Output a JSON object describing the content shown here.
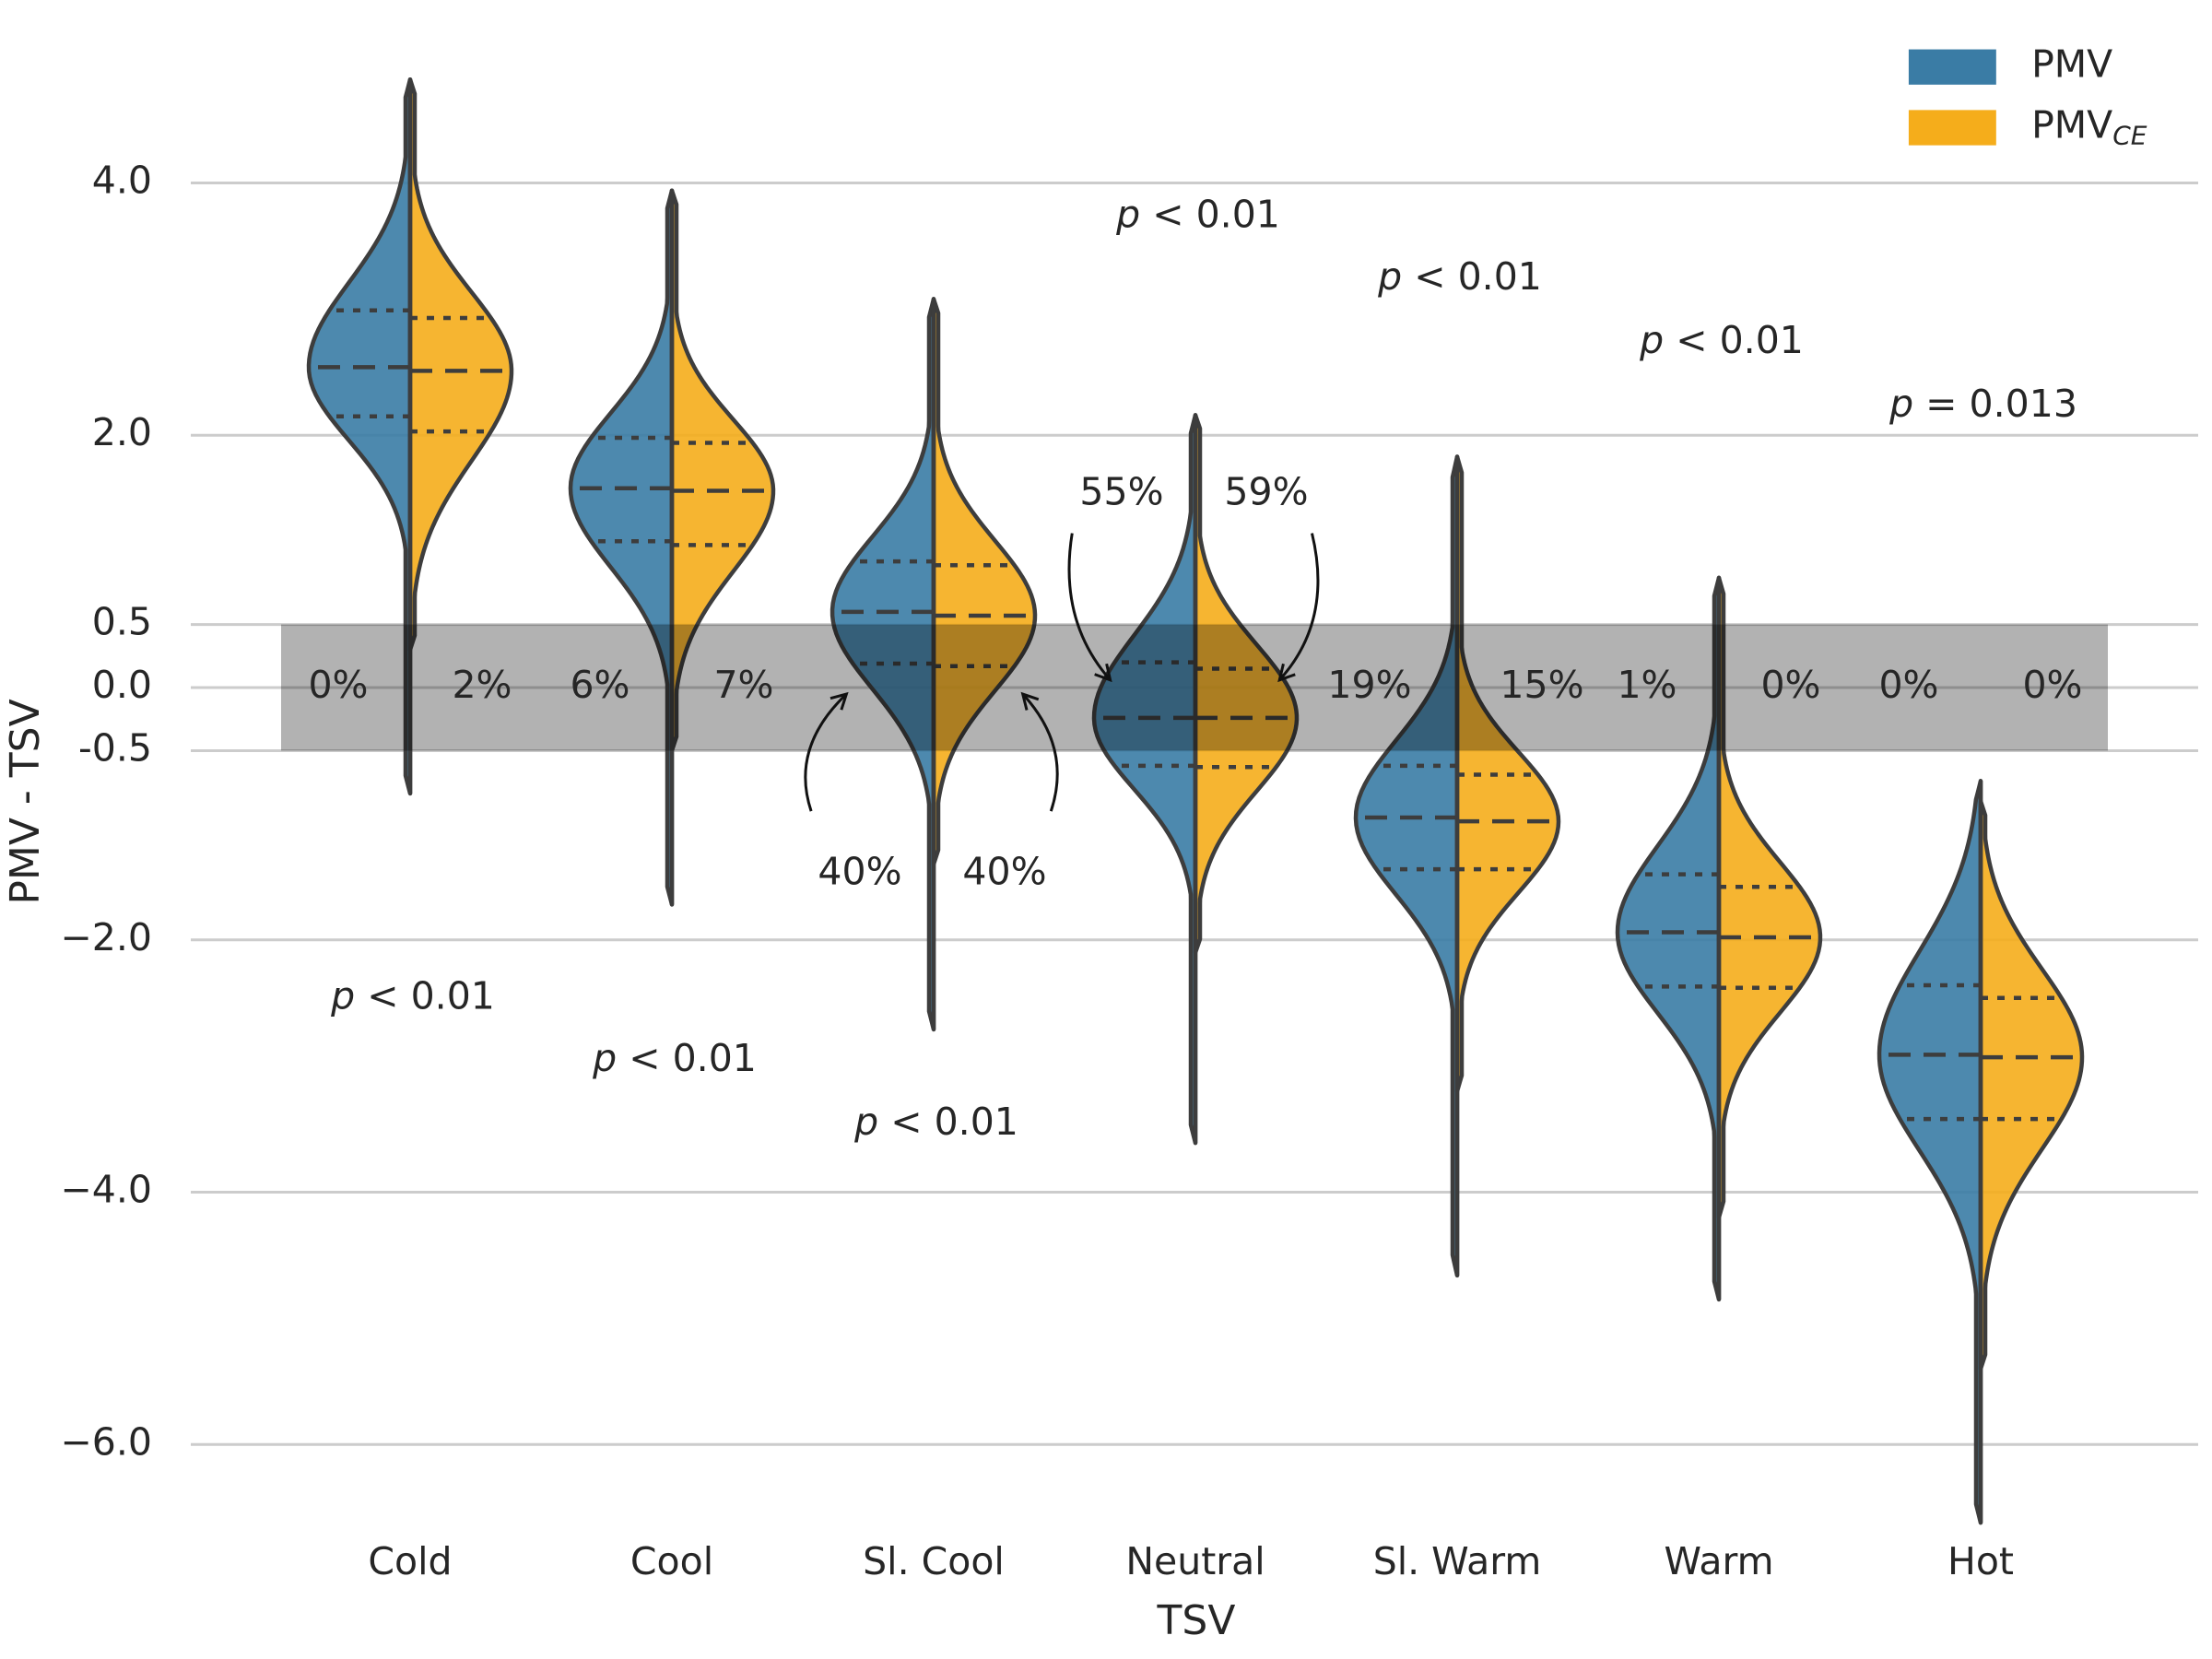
{
  "chart_data": {
    "type": "split-violin",
    "x_label": "TSV",
    "y_label": "PMV - TSV",
    "categories": [
      "Cold",
      "Cool",
      "Sl. Cool",
      "Neutral",
      "Sl. Warm",
      "Warm",
      "Hot"
    ],
    "ylim": [
      -7.7,
      5.45
    ],
    "yticks": [
      {
        "value": 4,
        "label": "4.0"
      },
      {
        "value": 2,
        "label": "2.0"
      },
      {
        "value": 0.5,
        "label": "0.5"
      },
      {
        "value": 0,
        "label": "0.0"
      },
      {
        "value": -0.5,
        "label": "-0.5"
      },
      {
        "value": -2,
        "label": "−2.0"
      },
      {
        "value": -4,
        "label": "−4.0"
      },
      {
        "value": -6,
        "label": "−6.0"
      }
    ],
    "grid": true,
    "band": [
      -0.5,
      0.5
    ],
    "legend": "upper right",
    "series": [
      {
        "name": "PMV",
        "color": "#3a7ca5",
        "max": [
          4.82,
          3.94,
          3.08,
          2.16,
          1.83,
          0.87,
          -0.74
        ],
        "q3": [
          2.99,
          1.98,
          1.0,
          0.2,
          -0.62,
          -1.48,
          -2.36
        ],
        "median": [
          2.54,
          1.58,
          0.6,
          -0.24,
          -1.03,
          -1.94,
          -2.91
        ],
        "q1": [
          2.15,
          1.16,
          0.19,
          -0.62,
          -1.44,
          -2.37,
          -3.42
        ],
        "min": [
          -0.84,
          -1.72,
          -2.71,
          -3.61,
          -4.66,
          -4.85,
          -6.62
        ],
        "band_labels": [
          "0%",
          "6%",
          "40%",
          "55%",
          "19%",
          "1%",
          "0%"
        ]
      },
      {
        "name": "PMVCE",
        "color": "#f5ad1b",
        "max": [
          4.82,
          3.94,
          3.08,
          2.16,
          1.83,
          0.87,
          -0.9
        ],
        "q3": [
          2.93,
          1.94,
          0.97,
          0.15,
          -0.69,
          -1.58,
          -2.46
        ],
        "median": [
          2.51,
          1.56,
          0.57,
          -0.24,
          -1.06,
          -1.98,
          -2.93
        ],
        "q1": [
          2.03,
          1.13,
          0.17,
          -0.63,
          -1.44,
          -2.38,
          -3.42
        ],
        "min": [
          0.3,
          -0.5,
          -1.4,
          -2.1,
          -3.2,
          -4.2,
          -5.4
        ],
        "band_labels": [
          "2%",
          "7%",
          "40%",
          "59%",
          "15%",
          "0%",
          "0%"
        ]
      }
    ],
    "p_values": [
      "p < 0.01",
      "p < 0.01",
      "p < 0.01",
      "p < 0.01",
      "p < 0.01",
      "p < 0.01",
      "p = 0.013"
    ]
  }
}
